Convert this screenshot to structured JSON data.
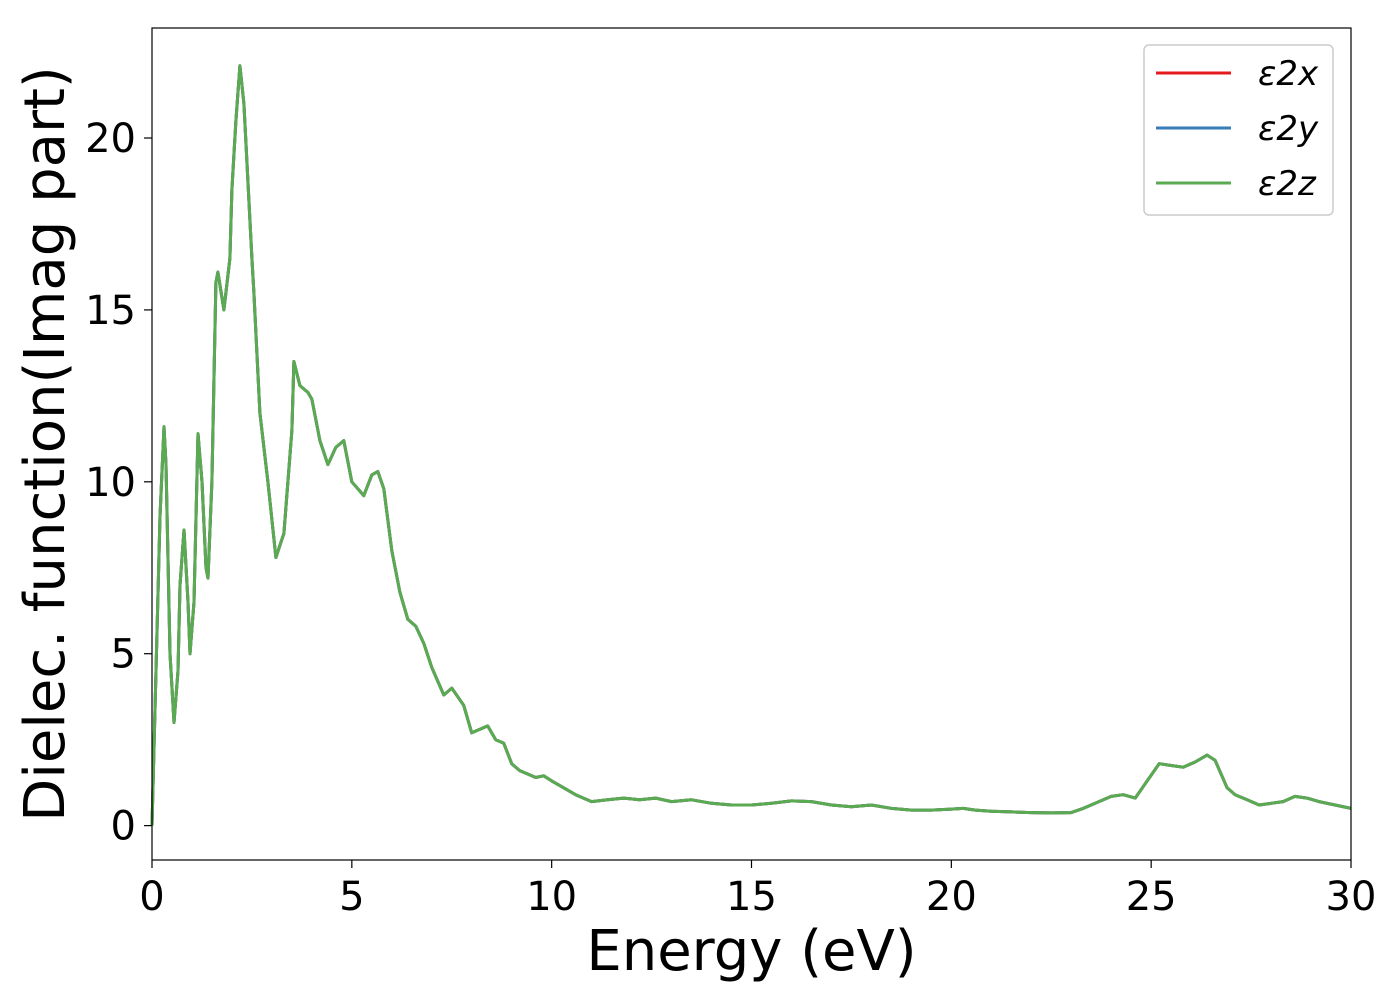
{
  "chart_data": {
    "type": "line",
    "title": "",
    "xlabel": "Energy (eV)",
    "ylabel": "Dielec. function(Imag part)",
    "xlim": [
      0,
      30
    ],
    "ylim": [
      -1,
      23.2
    ],
    "xticks": [
      0,
      5,
      10,
      15,
      20,
      25,
      30
    ],
    "yticks": [
      0,
      5,
      10,
      15,
      20
    ],
    "grid": false,
    "legend_position": "top-right",
    "series": [
      {
        "name": "ε2x",
        "color": "#e41a1c",
        "x": [
          0,
          0.1,
          0.2,
          0.3,
          0.35,
          0.45,
          0.55,
          0.65,
          0.7,
          0.8,
          0.9,
          0.95,
          1.05,
          1.15,
          1.25,
          1.35,
          1.4,
          1.5,
          1.6,
          1.65,
          1.8,
          1.95,
          2.0,
          2.05,
          2.1,
          2.2,
          2.3,
          2.5,
          2.55,
          2.7,
          2.9,
          3.1,
          3.3,
          3.5,
          3.55,
          3.7,
          3.9,
          4.0,
          4.2,
          4.4,
          4.6,
          4.8,
          5.0,
          5.3,
          5.5,
          5.65,
          5.8,
          6.0,
          6.2,
          6.4,
          6.6,
          6.8,
          7.0,
          7.3,
          7.5,
          7.8,
          8.0,
          8.2,
          8.4,
          8.6,
          8.8,
          9.0,
          9.2,
          9.4,
          9.6,
          9.8,
          10.0,
          10.3,
          10.6,
          11.0,
          11.4,
          11.8,
          12.2,
          12.6,
          13.0,
          13.5,
          14.0,
          14.5,
          15.0,
          15.5,
          16.0,
          16.5,
          17.0,
          17.5,
          18.0,
          18.5,
          19.0,
          19.5,
          20.0,
          20.3,
          20.6,
          21.0,
          21.5,
          22.0,
          22.5,
          23.0,
          23.3,
          23.6,
          24.0,
          24.3,
          24.6,
          24.9,
          25.2,
          25.5,
          25.8,
          26.1,
          26.4,
          26.6,
          26.9,
          27.1,
          27.4,
          27.7,
          28.0,
          28.3,
          28.6,
          28.9,
          29.2,
          29.6,
          30.0
        ],
        "y": [
          0,
          4.5,
          9.0,
          11.6,
          10.5,
          5.0,
          3.0,
          4.5,
          7.0,
          8.6,
          6.5,
          5.0,
          6.5,
          11.4,
          10.0,
          7.5,
          7.2,
          10.0,
          15.8,
          16.1,
          15.0,
          16.5,
          18.5,
          19.5,
          20.5,
          22.1,
          21.0,
          16.5,
          15.5,
          12.0,
          10.0,
          7.8,
          8.5,
          11.5,
          13.5,
          12.8,
          12.6,
          12.4,
          11.2,
          10.5,
          11.0,
          11.2,
          10.0,
          9.6,
          10.2,
          10.3,
          9.8,
          8.0,
          6.8,
          6.0,
          5.8,
          5.3,
          4.6,
          3.8,
          4.0,
          3.5,
          2.7,
          2.8,
          2.9,
          2.5,
          2.4,
          1.8,
          1.6,
          1.5,
          1.4,
          1.45,
          1.3,
          1.1,
          0.9,
          0.7,
          0.75,
          0.8,
          0.75,
          0.8,
          0.7,
          0.75,
          0.65,
          0.6,
          0.6,
          0.65,
          0.72,
          0.7,
          0.6,
          0.55,
          0.6,
          0.5,
          0.45,
          0.45,
          0.48,
          0.5,
          0.45,
          0.42,
          0.4,
          0.38,
          0.37,
          0.38,
          0.5,
          0.65,
          0.85,
          0.9,
          0.8,
          1.3,
          1.8,
          1.75,
          1.7,
          1.85,
          2.05,
          1.9,
          1.1,
          0.9,
          0.75,
          0.6,
          0.65,
          0.7,
          0.85,
          0.8,
          0.7,
          0.6,
          0.5
        ]
      },
      {
        "name": "ε2y",
        "color": "#377eb8",
        "x": [
          0,
          0.1,
          0.2,
          0.3,
          0.35,
          0.45,
          0.55,
          0.65,
          0.7,
          0.8,
          0.9,
          0.95,
          1.05,
          1.15,
          1.25,
          1.35,
          1.4,
          1.5,
          1.6,
          1.65,
          1.8,
          1.95,
          2.0,
          2.05,
          2.1,
          2.2,
          2.3,
          2.5,
          2.55,
          2.7,
          2.9,
          3.1,
          3.3,
          3.5,
          3.55,
          3.7,
          3.9,
          4.0,
          4.2,
          4.4,
          4.6,
          4.8,
          5.0,
          5.3,
          5.5,
          5.65,
          5.8,
          6.0,
          6.2,
          6.4,
          6.6,
          6.8,
          7.0,
          7.3,
          7.5,
          7.8,
          8.0,
          8.2,
          8.4,
          8.6,
          8.8,
          9.0,
          9.2,
          9.4,
          9.6,
          9.8,
          10.0,
          10.3,
          10.6,
          11.0,
          11.4,
          11.8,
          12.2,
          12.6,
          13.0,
          13.5,
          14.0,
          14.5,
          15.0,
          15.5,
          16.0,
          16.5,
          17.0,
          17.5,
          18.0,
          18.5,
          19.0,
          19.5,
          20.0,
          20.3,
          20.6,
          21.0,
          21.5,
          22.0,
          22.5,
          23.0,
          23.3,
          23.6,
          24.0,
          24.3,
          24.6,
          24.9,
          25.2,
          25.5,
          25.8,
          26.1,
          26.4,
          26.6,
          26.9,
          27.1,
          27.4,
          27.7,
          28.0,
          28.3,
          28.6,
          28.9,
          29.2,
          29.6,
          30.0
        ],
        "y": [
          0,
          4.5,
          9.0,
          11.6,
          10.5,
          5.0,
          3.0,
          4.5,
          7.0,
          8.6,
          6.5,
          5.0,
          6.5,
          11.4,
          10.0,
          7.5,
          7.2,
          10.0,
          15.8,
          16.1,
          15.0,
          16.5,
          18.5,
          19.5,
          20.5,
          22.1,
          21.0,
          16.5,
          15.5,
          12.0,
          10.0,
          7.8,
          8.5,
          11.5,
          13.5,
          12.8,
          12.6,
          12.4,
          11.2,
          10.5,
          11.0,
          11.2,
          10.0,
          9.6,
          10.2,
          10.3,
          9.8,
          8.0,
          6.8,
          6.0,
          5.8,
          5.3,
          4.6,
          3.8,
          4.0,
          3.5,
          2.7,
          2.8,
          2.9,
          2.5,
          2.4,
          1.8,
          1.6,
          1.5,
          1.4,
          1.45,
          1.3,
          1.1,
          0.9,
          0.7,
          0.75,
          0.8,
          0.75,
          0.8,
          0.7,
          0.75,
          0.65,
          0.6,
          0.6,
          0.65,
          0.72,
          0.7,
          0.6,
          0.55,
          0.6,
          0.5,
          0.45,
          0.45,
          0.48,
          0.5,
          0.45,
          0.42,
          0.4,
          0.38,
          0.37,
          0.38,
          0.5,
          0.65,
          0.85,
          0.9,
          0.8,
          1.3,
          1.8,
          1.75,
          1.7,
          1.85,
          2.05,
          1.9,
          1.1,
          0.9,
          0.75,
          0.6,
          0.65,
          0.7,
          0.85,
          0.8,
          0.7,
          0.6,
          0.5
        ]
      },
      {
        "name": "ε2z",
        "color": "#5aaa52",
        "x": [
          0,
          0.1,
          0.2,
          0.3,
          0.35,
          0.45,
          0.55,
          0.65,
          0.7,
          0.8,
          0.9,
          0.95,
          1.05,
          1.15,
          1.25,
          1.35,
          1.4,
          1.5,
          1.6,
          1.65,
          1.8,
          1.95,
          2.0,
          2.05,
          2.1,
          2.2,
          2.3,
          2.5,
          2.55,
          2.7,
          2.9,
          3.1,
          3.3,
          3.5,
          3.55,
          3.7,
          3.9,
          4.0,
          4.2,
          4.4,
          4.6,
          4.8,
          5.0,
          5.3,
          5.5,
          5.65,
          5.8,
          6.0,
          6.2,
          6.4,
          6.6,
          6.8,
          7.0,
          7.3,
          7.5,
          7.8,
          8.0,
          8.2,
          8.4,
          8.6,
          8.8,
          9.0,
          9.2,
          9.4,
          9.6,
          9.8,
          10.0,
          10.3,
          10.6,
          11.0,
          11.4,
          11.8,
          12.2,
          12.6,
          13.0,
          13.5,
          14.0,
          14.5,
          15.0,
          15.5,
          16.0,
          16.5,
          17.0,
          17.5,
          18.0,
          18.5,
          19.0,
          19.5,
          20.0,
          20.3,
          20.6,
          21.0,
          21.5,
          22.0,
          22.5,
          23.0,
          23.3,
          23.6,
          24.0,
          24.3,
          24.6,
          24.9,
          25.2,
          25.5,
          25.8,
          26.1,
          26.4,
          26.6,
          26.9,
          27.1,
          27.4,
          27.7,
          28.0,
          28.3,
          28.6,
          28.9,
          29.2,
          29.6,
          30.0
        ],
        "y": [
          0,
          4.5,
          9.0,
          11.6,
          10.5,
          5.0,
          3.0,
          4.5,
          7.0,
          8.6,
          6.5,
          5.0,
          6.5,
          11.4,
          10.0,
          7.5,
          7.2,
          10.0,
          15.8,
          16.1,
          15.0,
          16.5,
          18.5,
          19.5,
          20.5,
          22.1,
          21.0,
          16.5,
          15.5,
          12.0,
          10.0,
          7.8,
          8.5,
          11.5,
          13.5,
          12.8,
          12.6,
          12.4,
          11.2,
          10.5,
          11.0,
          11.2,
          10.0,
          9.6,
          10.2,
          10.3,
          9.8,
          8.0,
          6.8,
          6.0,
          5.8,
          5.3,
          4.6,
          3.8,
          4.0,
          3.5,
          2.7,
          2.8,
          2.9,
          2.5,
          2.4,
          1.8,
          1.6,
          1.5,
          1.4,
          1.45,
          1.3,
          1.1,
          0.9,
          0.7,
          0.75,
          0.8,
          0.75,
          0.8,
          0.7,
          0.75,
          0.65,
          0.6,
          0.6,
          0.65,
          0.72,
          0.7,
          0.6,
          0.55,
          0.6,
          0.5,
          0.45,
          0.45,
          0.48,
          0.5,
          0.45,
          0.42,
          0.4,
          0.38,
          0.37,
          0.38,
          0.5,
          0.65,
          0.85,
          0.9,
          0.8,
          1.3,
          1.8,
          1.75,
          1.7,
          1.85,
          2.05,
          1.9,
          1.1,
          0.9,
          0.75,
          0.6,
          0.65,
          0.7,
          0.85,
          0.8,
          0.7,
          0.6,
          0.5
        ]
      }
    ]
  }
}
